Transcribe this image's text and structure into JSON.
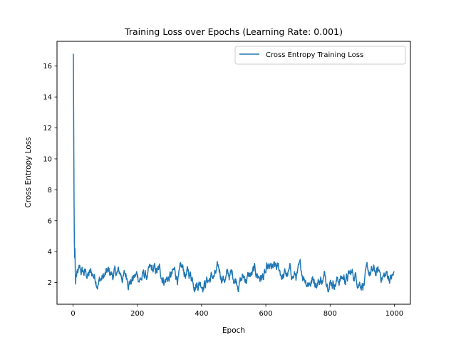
{
  "chart_data": {
    "type": "line",
    "title": "Training Loss over Epochs (Learning Rate: 0.001)",
    "xlabel": "Epoch",
    "ylabel": "Cross Entropy Loss",
    "xlim": [
      -50,
      1050
    ],
    "ylim": [
      0.6,
      17.6
    ],
    "xticks": [
      0,
      200,
      400,
      600,
      800,
      1000
    ],
    "yticks": [
      2,
      4,
      6,
      8,
      10,
      12,
      14,
      16
    ],
    "grid": false,
    "legend_position": "top-right",
    "series": [
      {
        "name": "Cross Entropy Training Loss",
        "color": "#1f77b4",
        "x_start": 0,
        "x_end": 1000,
        "initial_points": [
          [
            0,
            16.8
          ],
          [
            1,
            16.7
          ],
          [
            2,
            12.0
          ],
          [
            3,
            7.5
          ],
          [
            4,
            4.6
          ],
          [
            5,
            3.6
          ],
          [
            6,
            4.2
          ],
          [
            7,
            2.6
          ],
          [
            8,
            1.9
          ]
        ],
        "steady_level": 2.4,
        "steady_range": [
          1.4,
          3.5
        ]
      }
    ]
  },
  "colors": {
    "series": "#1f77b4",
    "axis": "#000000",
    "background": "#ffffff"
  }
}
